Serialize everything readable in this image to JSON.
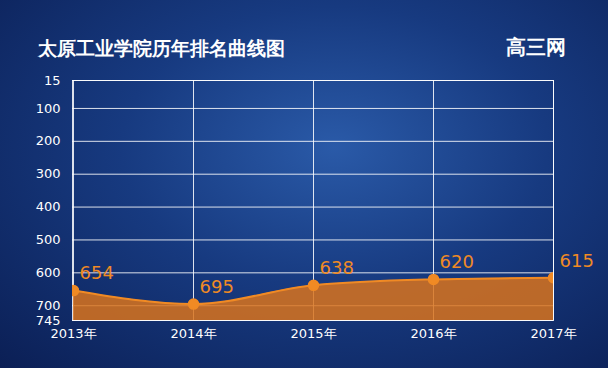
{
  "chart_data": {
    "type": "line",
    "title": "太原工业学院历年排名曲线图",
    "source": "高三网",
    "categories": [
      "2013年",
      "2014年",
      "2015年",
      "2016年",
      "2017年"
    ],
    "values": [
      654,
      695,
      638,
      620,
      615
    ],
    "color": "#f08a24",
    "ylim": [
      745,
      15
    ],
    "yticks": [
      15,
      100,
      200,
      300,
      400,
      500,
      600,
      700,
      745
    ],
    "grid": true,
    "data_labels": true,
    "marker": "circle"
  }
}
